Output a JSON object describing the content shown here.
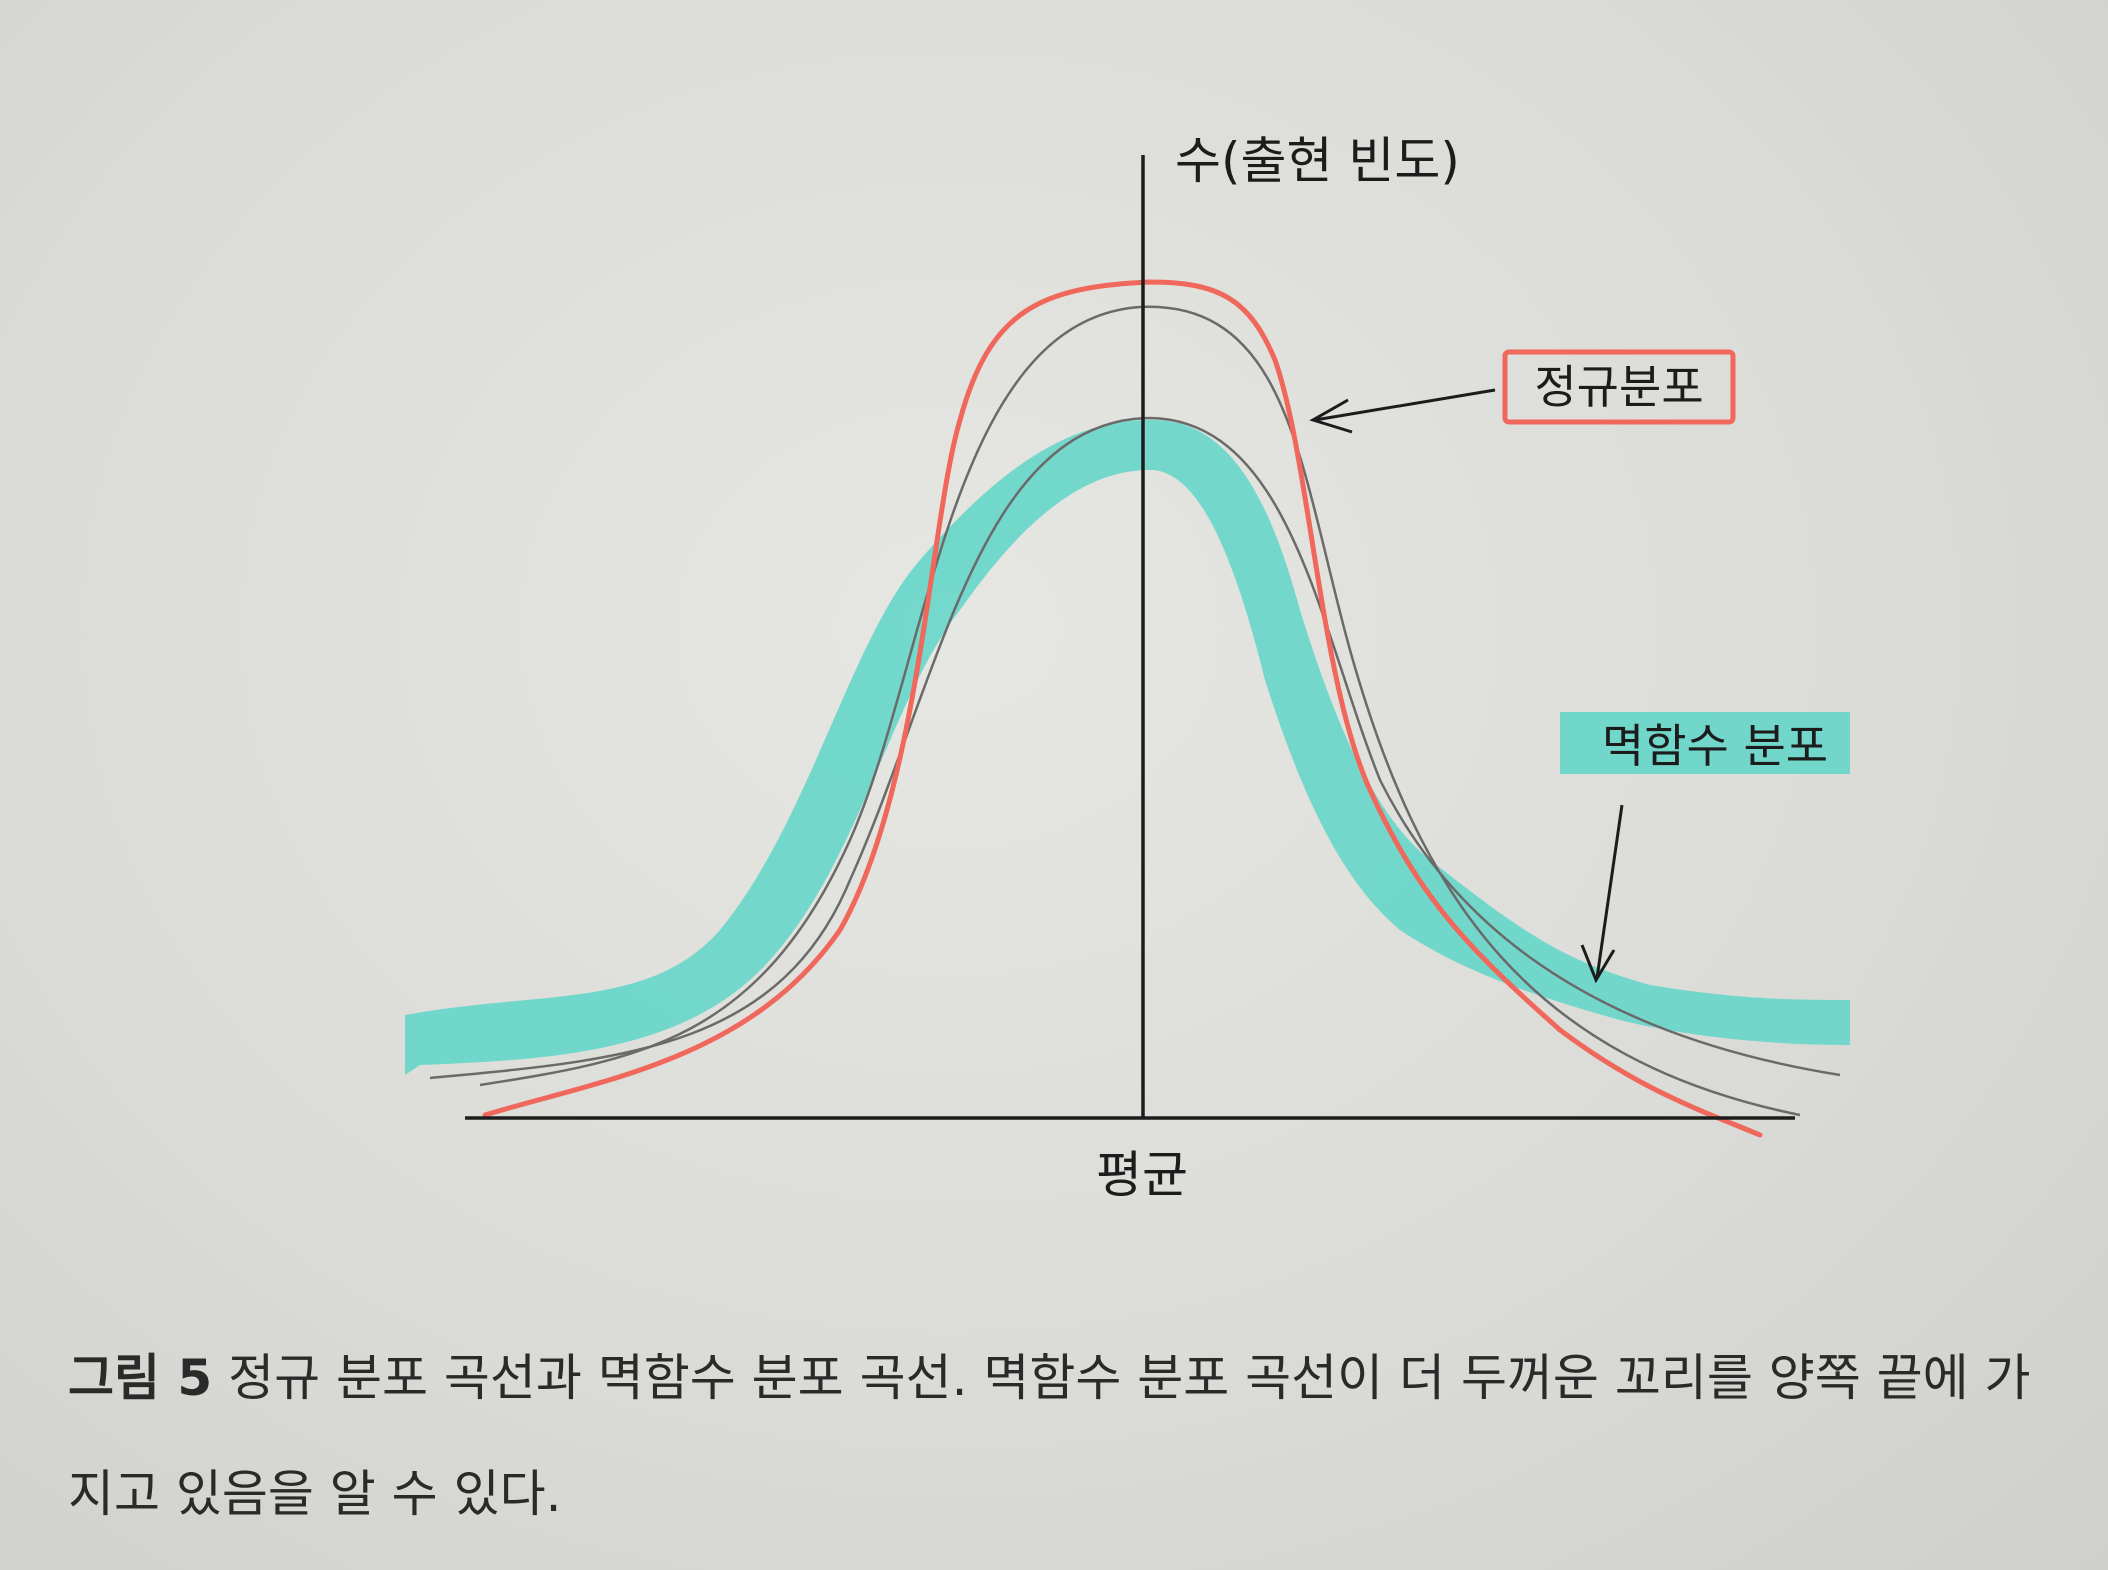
{
  "diagram": {
    "y_axis_label": "수(출현 빈도)",
    "x_axis_label": "평균",
    "normal_label": "정규분포",
    "power_label": "멱함수 분포"
  },
  "colors": {
    "normal_highlight": "#f0675c",
    "power_highlight": "#5fd6c8",
    "ink": "#1c1c1c",
    "thin_curve": "#6a6a6a"
  },
  "caption": {
    "figure_number": "그림 5",
    "text": "정규 분포 곡선과 멱함수 분포 곡선. 멱함수 분포 곡선이 더 두꺼운 꼬리를 양쪽 끝에 가지고 있음을 알 수 있다."
  }
}
